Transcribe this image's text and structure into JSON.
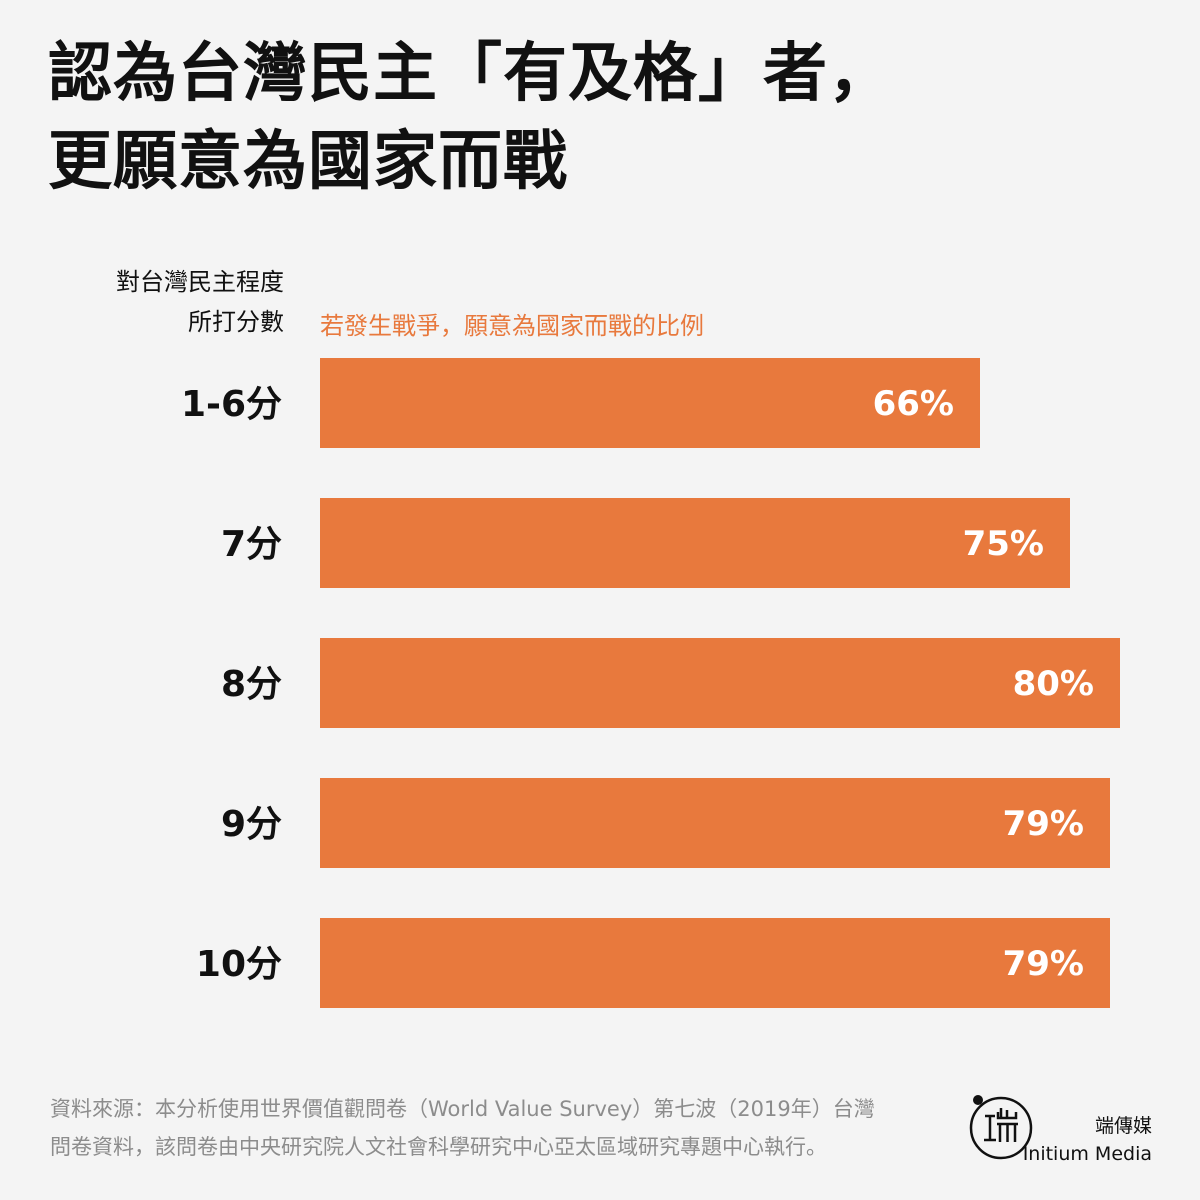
{
  "title": {
    "line1": "認為台灣民主「有及格」者，",
    "line2": "更願意為國家而戰"
  },
  "axis_label": {
    "line1": "對台灣民主程度",
    "line2": "所打分數"
  },
  "series_label": "若發生戰爭，願意為國家而戰的比例",
  "chart_data": {
    "type": "bar",
    "orientation": "horizontal",
    "categories": [
      "1-6分",
      "7分",
      "8分",
      "9分",
      "10分"
    ],
    "values": [
      66,
      75,
      80,
      79,
      79
    ],
    "value_labels": [
      "66%",
      "75%",
      "80%",
      "79%",
      "79%"
    ],
    "ylabel": "對台灣民主程度所打分數",
    "series": [
      {
        "name": "若發生戰爭，願意為國家而戰的比例",
        "values": [
          66,
          75,
          80,
          79,
          79
        ]
      }
    ],
    "xlim": [
      0,
      80
    ],
    "grid": false,
    "bar_color": "#e8793d"
  },
  "footnote": {
    "line1": "資料來源：本分析使用世界價值觀問卷（World Value Survey）第七波（2019年）台灣",
    "line2": "問卷資料，該問卷由中央研究院人文社會科學研究中心亞太區域研究專題中心執行。"
  },
  "brand": {
    "name_zh": "端傳媒",
    "name_en": "Initium Media"
  },
  "colors": {
    "background": "#f4f4f4",
    "accent": "#e8793d",
    "text": "#111111",
    "muted": "#8c8c8c"
  }
}
